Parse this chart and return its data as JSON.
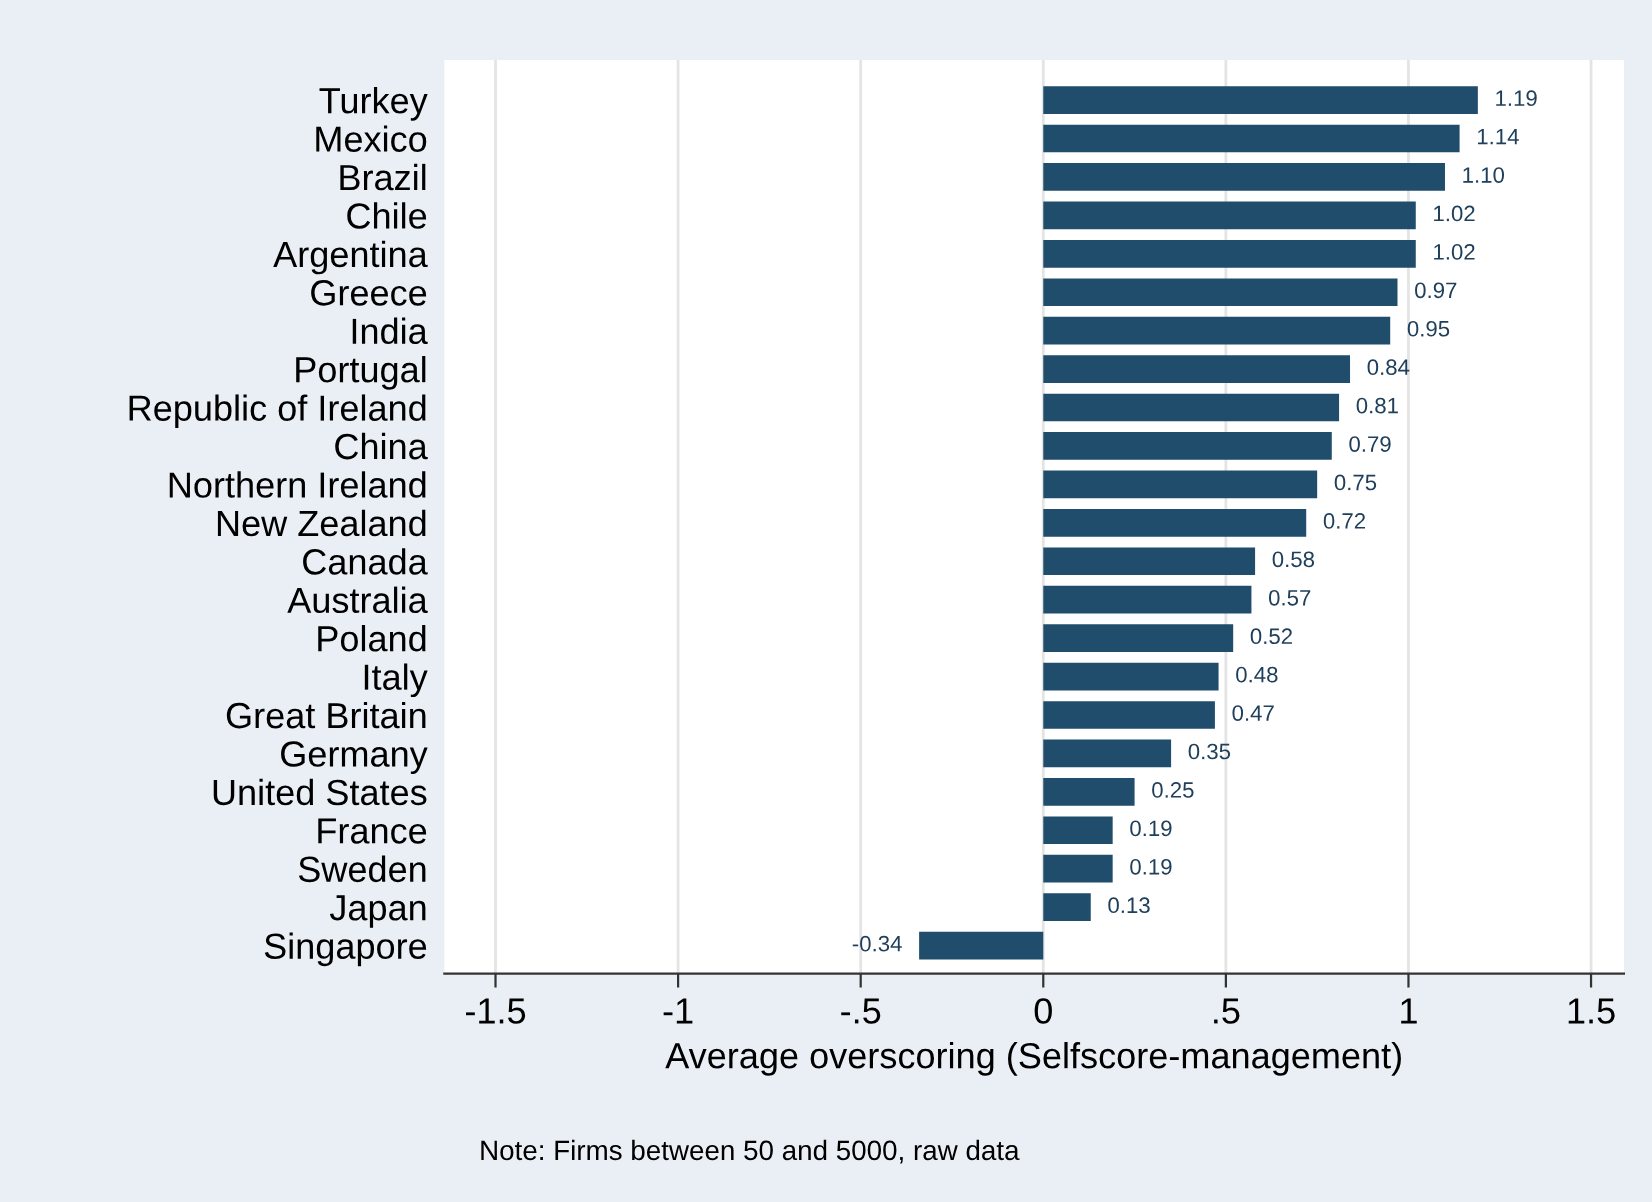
{
  "chart_data": {
    "type": "bar",
    "orientation": "horizontal",
    "xlabel": "Average overscoring (Selfscore-management)",
    "categories": [
      "Turkey",
      "Mexico",
      "Brazil",
      "Chile",
      "Argentina",
      "Greece",
      "India",
      "Portugal",
      "Republic of Ireland",
      "China",
      "Northern Ireland",
      "New Zealand",
      "Canada",
      "Australia",
      "Poland",
      "Italy",
      "Great Britain",
      "Germany",
      "United States",
      "France",
      "Sweden",
      "Japan",
      "Singapore"
    ],
    "values": [
      1.19,
      1.14,
      1.1,
      1.02,
      1.02,
      0.97,
      0.95,
      0.84,
      0.81,
      0.79,
      0.75,
      0.72,
      0.58,
      0.57,
      0.52,
      0.48,
      0.47,
      0.35,
      0.25,
      0.19,
      0.19,
      0.13,
      -0.34
    ],
    "value_labels": [
      "1.19",
      "1.14",
      "1.10",
      "1.02",
      "1.02",
      "0.97",
      "0.95",
      "0.84",
      "0.81",
      "0.79",
      "0.75",
      "0.72",
      "0.58",
      "0.57",
      "0.52",
      "0.48",
      "0.47",
      "0.35",
      "0.25",
      "0.19",
      "0.19",
      "0.13",
      "-0.34"
    ],
    "color": "#1f4d6b",
    "xlim": [
      -1.64,
      1.59
    ],
    "xticks": [
      -1.5,
      -1,
      {
        "value": -0.5,
        "label": "-.5"
      },
      0,
      {
        "value": 0.5,
        "label": ".5"
      },
      1,
      1.5
    ],
    "grid": "x",
    "annotations": [
      "Note: Firms between 50 and 5000, raw data"
    ]
  }
}
